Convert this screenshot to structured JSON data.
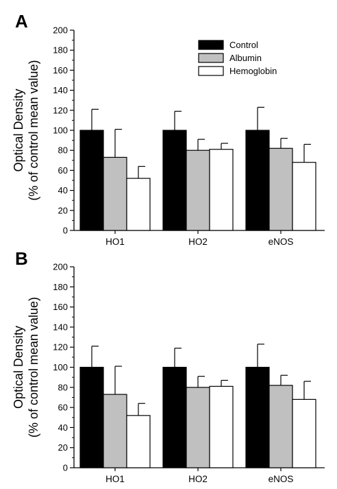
{
  "colors": {
    "Control": "#000000",
    "Albumin": "#c0c0c0",
    "Hemoglobin": "#ffffff",
    "outline": "#000000"
  },
  "chart_data": [
    {
      "panel": "A",
      "type": "bar",
      "categories": [
        "HO1",
        "HO2",
        "eNOS"
      ],
      "series": [
        {
          "name": "Control",
          "values": [
            100,
            100,
            100
          ],
          "error": [
            21,
            19,
            23
          ]
        },
        {
          "name": "Albumin",
          "values": [
            73,
            80,
            82
          ],
          "error": [
            28,
            11,
            10
          ]
        },
        {
          "name": "Hemoglobin",
          "values": [
            52,
            81,
            68
          ],
          "error": [
            12,
            6,
            18
          ]
        }
      ],
      "ylabel_line1": "Optical Density",
      "ylabel_line2": "(% of control mean value)",
      "ylim": [
        0,
        200
      ],
      "yticks": [
        "0",
        "20",
        "40",
        "60",
        "80",
        "100",
        "120",
        "140",
        "160",
        "180",
        "200"
      ],
      "legend": {
        "placement": "top-center",
        "entries": [
          "Control",
          "Albumin",
          "Hemoglobin"
        ]
      },
      "grid": false
    },
    {
      "panel": "B",
      "type": "bar",
      "categories": [
        "HO1",
        "HO2",
        "eNOS"
      ],
      "series": [
        {
          "name": "Control",
          "values": [
            100,
            100,
            100
          ],
          "error": [
            21,
            19,
            23
          ]
        },
        {
          "name": "Albumin",
          "values": [
            73,
            80,
            82
          ],
          "error": [
            28,
            11,
            10
          ]
        },
        {
          "name": "Hemoglobin",
          "values": [
            52,
            81,
            68
          ],
          "error": [
            12,
            6,
            18
          ]
        }
      ],
      "ylabel_line1": "Optical Density",
      "ylabel_line2": "(% of control mean value)",
      "ylim": [
        0,
        200
      ],
      "yticks": [
        "0",
        "20",
        "40",
        "60",
        "80",
        "100",
        "120",
        "140",
        "160",
        "180",
        "200"
      ],
      "legend": null,
      "grid": false
    }
  ]
}
